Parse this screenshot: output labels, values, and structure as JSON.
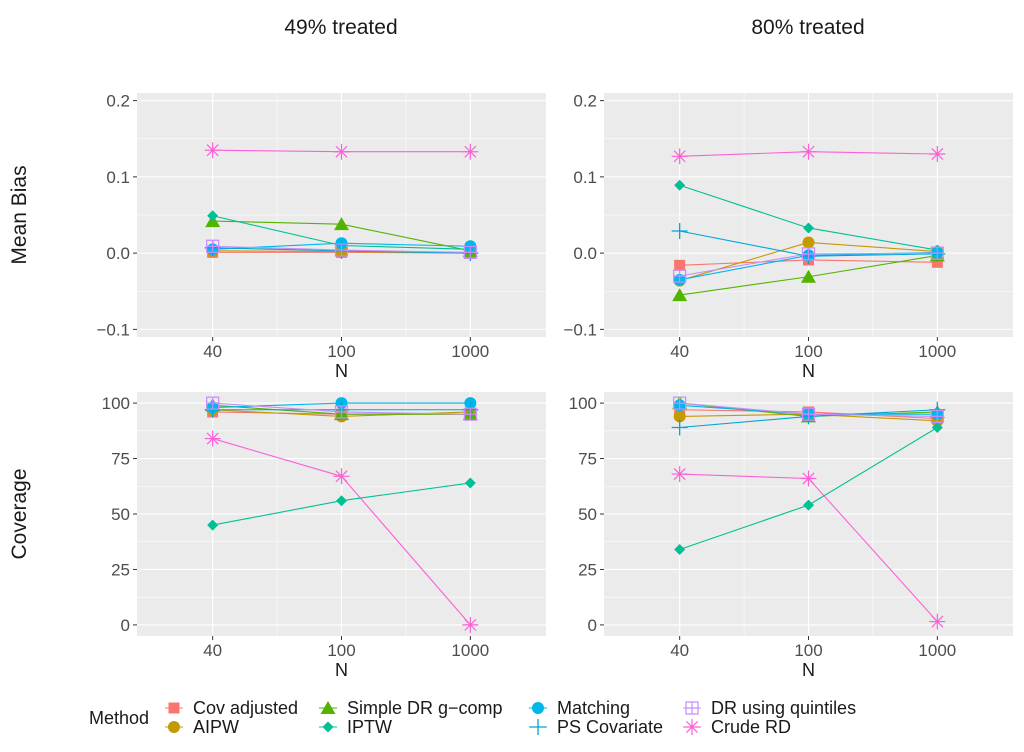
{
  "chart_data": {
    "type": "line",
    "x_categories": [
      "40",
      "100",
      "1000"
    ],
    "xlabel": "N",
    "columns": [
      "49% treated",
      "80% treated"
    ],
    "rows": [
      {
        "label": "Mean Bias",
        "ylim": [
          -0.11,
          0.21
        ],
        "yticks": [
          -0.1,
          0.0,
          0.1,
          0.2
        ],
        "tick_labels": [
          "−0.1",
          "0.0",
          "0.1",
          "0.2"
        ]
      },
      {
        "label": "Coverage",
        "ylim": [
          -5,
          105
        ],
        "yticks": [
          0,
          25,
          50,
          75,
          100
        ],
        "tick_labels": [
          "0",
          "25",
          "50",
          "75",
          "100"
        ]
      }
    ],
    "legend": {
      "title": "Method",
      "position": "bottom"
    },
    "methods": [
      {
        "name": "Cov adjusted",
        "color": "#F8766D",
        "shape": "square"
      },
      {
        "name": "AIPW",
        "color": "#C49A00",
        "shape": "circle"
      },
      {
        "name": "Simple DR g−comp",
        "color": "#53B400",
        "shape": "triangle"
      },
      {
        "name": "IPTW",
        "color": "#00C094",
        "shape": "diamond"
      },
      {
        "name": "Matching",
        "color": "#00B6EB",
        "shape": "circle"
      },
      {
        "name": "PS Covariate",
        "color": "#00A5D7",
        "shape": "plus"
      },
      {
        "name": "DR using quintiles",
        "color": "#C88BFF",
        "shape": "boxplus"
      },
      {
        "name": "Crude RD",
        "color": "#FB61D7",
        "shape": "star"
      }
    ],
    "panels": [
      {
        "row": 0,
        "col": 0,
        "values": [
          [
            0.001,
            0.001,
            0.0
          ],
          [
            0.003,
            0.002,
            0.0
          ],
          [
            0.042,
            0.038,
            0.003
          ],
          [
            0.049,
            0.01,
            0.005
          ],
          [
            0.005,
            0.013,
            0.009
          ],
          [
            0.007,
            0.003,
            0.0
          ],
          [
            0.009,
            0.004,
            0.001
          ],
          [
            0.135,
            0.133,
            0.133
          ]
        ]
      },
      {
        "row": 0,
        "col": 1,
        "values": [
          [
            -0.016,
            -0.009,
            -0.012
          ],
          [
            -0.036,
            0.014,
            0.002
          ],
          [
            -0.055,
            -0.031,
            -0.003
          ],
          [
            0.089,
            0.033,
            0.004
          ],
          [
            -0.035,
            -0.003,
            0.001
          ],
          [
            0.029,
            -0.004,
            -0.001
          ],
          [
            -0.03,
            -0.001,
            0.0
          ],
          [
            0.127,
            0.133,
            0.13
          ]
        ]
      },
      {
        "row": 1,
        "col": 0,
        "values": [
          [
            96,
            95,
            95
          ],
          [
            97,
            94,
            96
          ],
          [
            99,
            95,
            95
          ],
          [
            45,
            56,
            64
          ],
          [
            98,
            100,
            100
          ],
          [
            97,
            97,
            97
          ],
          [
            100,
            96,
            95
          ],
          [
            84,
            67,
            0
          ]
        ]
      },
      {
        "row": 1,
        "col": 1,
        "values": [
          [
            97,
            96,
            93
          ],
          [
            94,
            95,
            92
          ],
          [
            100,
            94,
            96
          ],
          [
            34,
            54,
            89
          ],
          [
            99,
            95,
            95
          ],
          [
            89,
            94,
            97
          ],
          [
            100,
            95,
            94
          ],
          [
            68,
            66,
            1.5
          ]
        ]
      }
    ]
  }
}
